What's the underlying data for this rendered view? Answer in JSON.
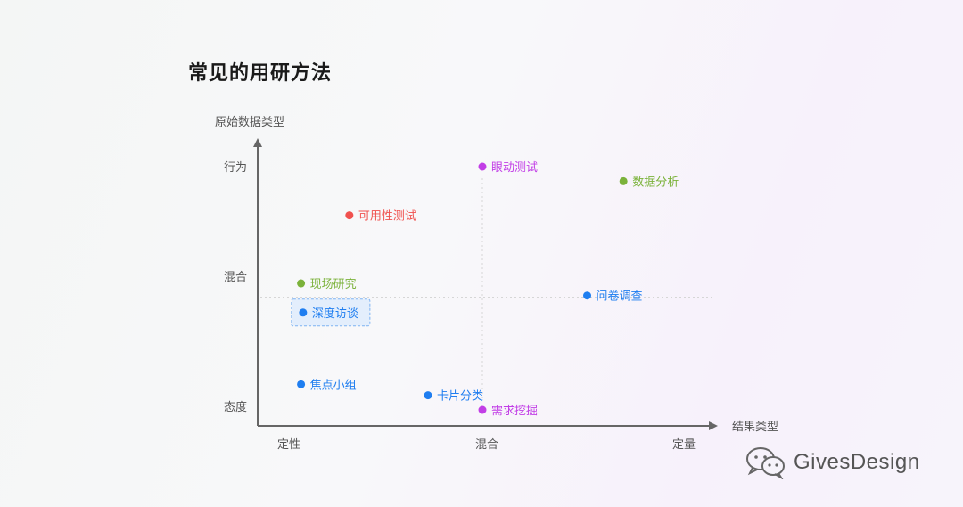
{
  "page": {
    "title": "常见的用研方法"
  },
  "watermark": {
    "text": "GivesDesign",
    "icon": "wechat-icon"
  },
  "chart_data": {
    "type": "scatter",
    "title": "常见的用研方法",
    "xlabel": "结果类型",
    "ylabel": "原始数据类型",
    "x_categories": [
      "定性",
      "混合",
      "定量"
    ],
    "y_categories": [
      "态度",
      "混合",
      "行为"
    ],
    "xlim": [
      0,
      2
    ],
    "ylim": [
      0,
      2
    ],
    "grid": {
      "x_line_at": 1,
      "y_line_at": 1,
      "style": "dotted"
    },
    "points": [
      {
        "label": "眼动测试",
        "x": 1.0,
        "y": 2.0,
        "color": "#c23ee6"
      },
      {
        "label": "数据分析",
        "x": 1.7,
        "y": 1.88,
        "color": "#7bb23a"
      },
      {
        "label": "可用性测试",
        "x": 0.34,
        "y": 1.6,
        "color": "#f0514e"
      },
      {
        "label": "现场研究",
        "x": 0.1,
        "y": 1.04,
        "color": "#7bb23a"
      },
      {
        "label": "问卷调查",
        "x": 1.52,
        "y": 0.94,
        "color": "#1f7ef0"
      },
      {
        "label": "深度访谈",
        "x": 0.11,
        "y": 0.8,
        "color": "#1f7ef0",
        "highlighted": true
      },
      {
        "label": "焦点小组",
        "x": 0.1,
        "y": 0.21,
        "color": "#1f7ef0"
      },
      {
        "label": "卡片分类",
        "x": 0.73,
        "y": 0.12,
        "color": "#1f7ef0"
      },
      {
        "label": "需求挖掘",
        "x": 1.0,
        "y": 0.0,
        "color": "#c23ee6"
      }
    ]
  }
}
